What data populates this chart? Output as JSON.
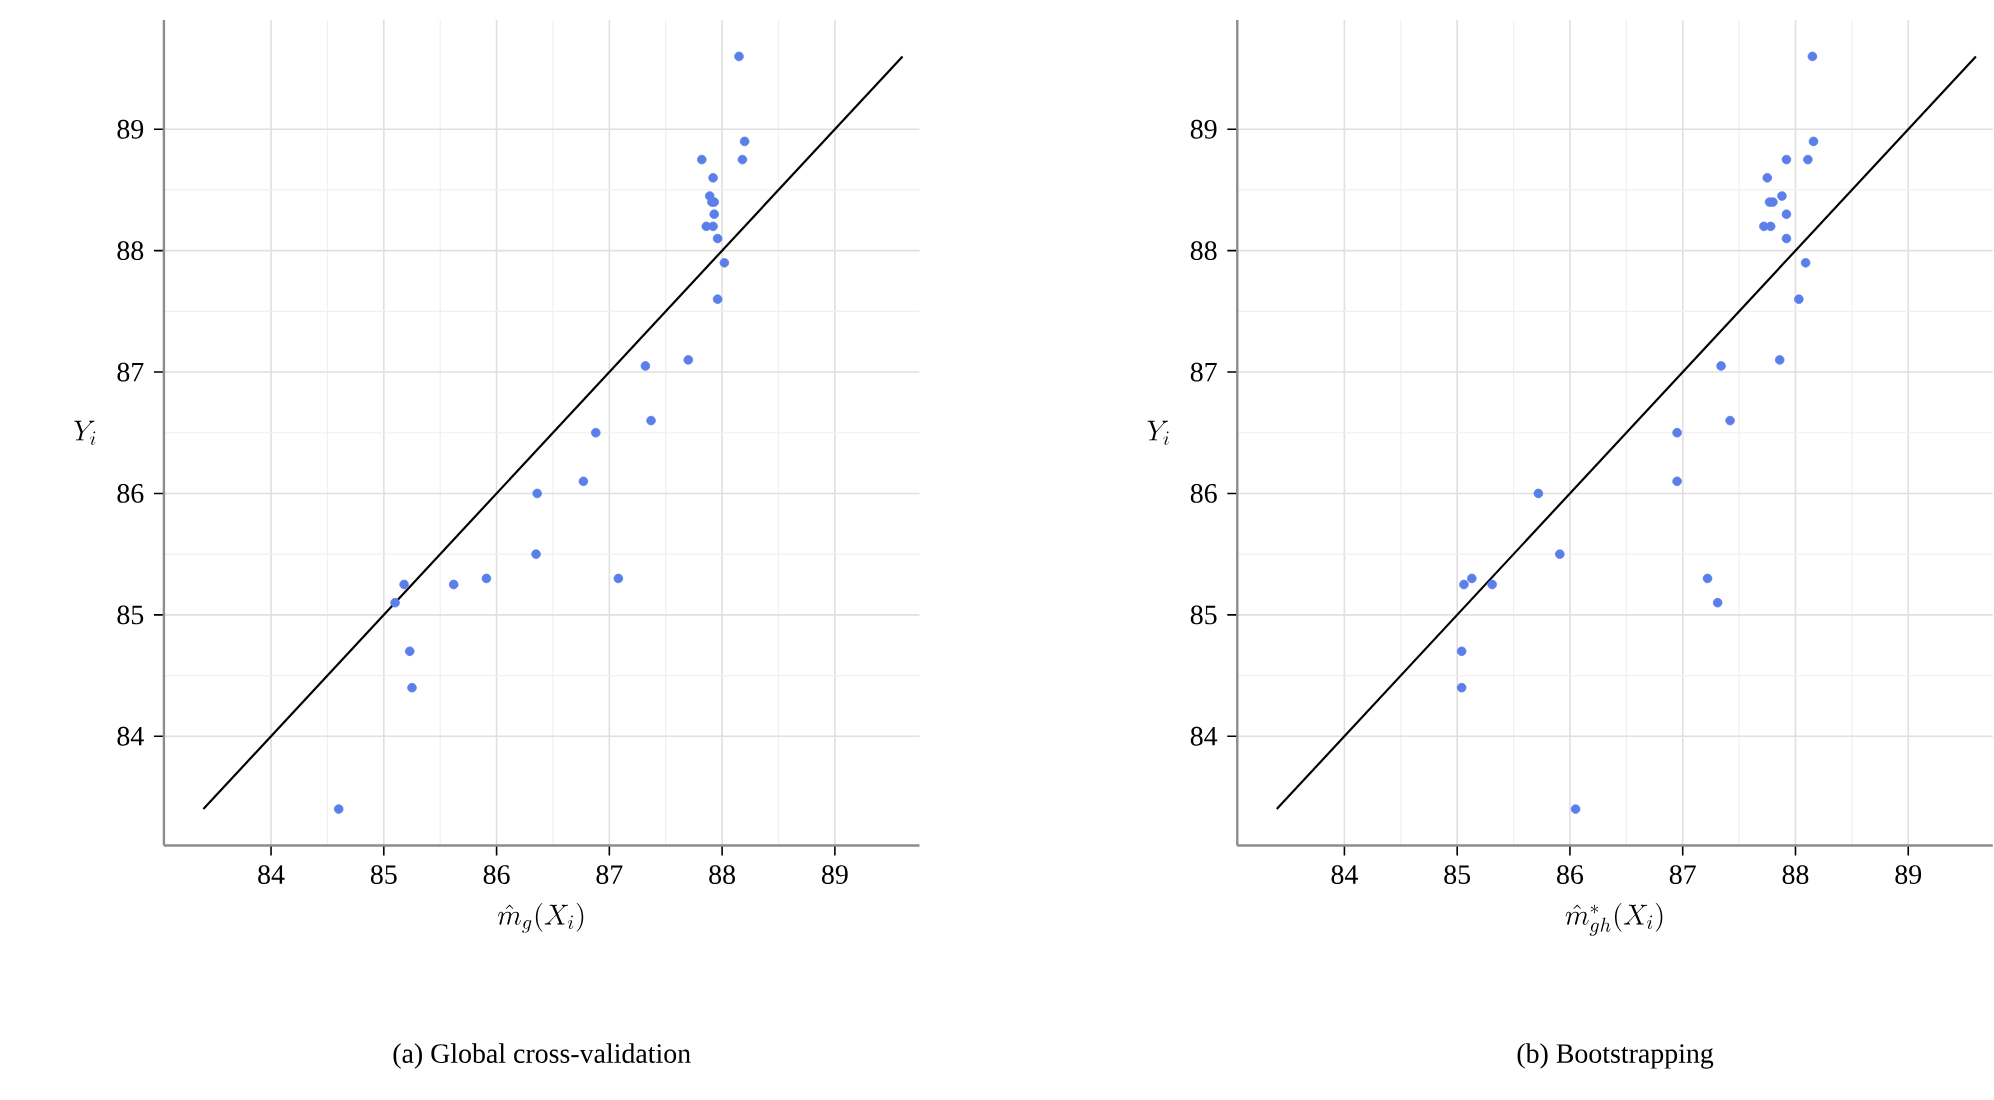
{
  "chart_data": [
    {
      "type": "scatter",
      "xlabel": "\\hat{m}_{g}(X_{i})",
      "ylabel": "Y_{i}",
      "annotations": [
        "(a) Global cross-validation"
      ],
      "xlim": [
        83.05,
        89.75
      ],
      "ylim": [
        83.1,
        89.9
      ],
      "xticks": [
        84,
        85,
        86,
        87,
        88,
        89
      ],
      "yticks": [
        84,
        85,
        86,
        87,
        88,
        89
      ],
      "grid": true,
      "series": [
        {
          "color": "#5b7fe8",
          "marker": "circle",
          "x": [
            88.15,
            88.2,
            87.82,
            88.18,
            87.92,
            87.89,
            87.91,
            87.93,
            87.93,
            87.86,
            87.92,
            87.96,
            88.02,
            87.96,
            87.32,
            87.7,
            87.37,
            86.88,
            86.77,
            86.36,
            86.35,
            85.62,
            85.91,
            87.08,
            85.18,
            85.1,
            85.23,
            85.25,
            84.6
          ],
          "values": [
            89.6,
            88.9,
            88.75,
            88.75,
            88.6,
            88.45,
            88.4,
            88.4,
            88.3,
            88.2,
            88.2,
            88.1,
            87.9,
            87.6,
            87.05,
            87.1,
            86.6,
            86.5,
            86.1,
            86.0,
            85.5,
            85.25,
            85.3,
            85.3,
            85.25,
            85.1,
            84.7,
            84.4,
            83.4
          ]
        },
        {
          "type": "line",
          "color": "#000000",
          "x": [
            83.4,
            89.6
          ],
          "values": [
            83.4,
            89.6
          ]
        }
      ]
    },
    {
      "type": "scatter",
      "xlabel": "\\hat{m}^{*}_{gh}(X_{i})",
      "ylabel": "Y_{i}",
      "annotations": [
        "(b) Bootstrapping"
      ],
      "xlim": [
        83.05,
        89.75
      ],
      "ylim": [
        83.1,
        89.9
      ],
      "xticks": [
        84,
        85,
        86,
        87,
        88,
        89
      ],
      "yticks": [
        84,
        85,
        86,
        87,
        88,
        89
      ],
      "grid": true,
      "series": [
        {
          "color": "#5b7fe8",
          "marker": "circle",
          "x": [
            88.15,
            88.16,
            87.92,
            88.11,
            87.75,
            87.88,
            87.77,
            87.8,
            87.92,
            87.72,
            87.78,
            87.92,
            88.09,
            88.03,
            87.34,
            87.86,
            87.42,
            86.95,
            86.95,
            85.72,
            85.91,
            85.06,
            85.13,
            85.31,
            87.22,
            87.31,
            85.04,
            85.04,
            86.05
          ],
          "values": [
            89.6,
            88.9,
            88.75,
            88.75,
            88.6,
            88.45,
            88.4,
            88.4,
            88.3,
            88.2,
            88.2,
            88.1,
            87.9,
            87.6,
            87.05,
            87.1,
            86.6,
            86.5,
            86.1,
            86.0,
            85.5,
            85.25,
            85.3,
            85.25,
            85.3,
            85.1,
            84.7,
            84.4,
            83.4
          ]
        },
        {
          "type": "line",
          "color": "#000000",
          "x": [
            83.4,
            89.6
          ],
          "values": [
            83.4,
            89.6
          ]
        }
      ]
    }
  ]
}
